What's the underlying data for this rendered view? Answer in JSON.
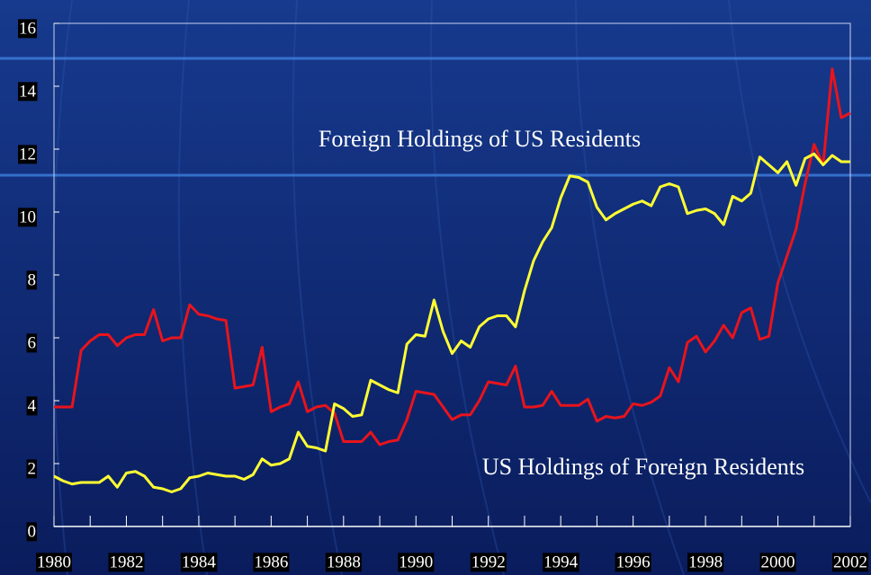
{
  "chart_data": {
    "type": "line",
    "annotations": [
      "Foreign Holdings of US Residents",
      "US Holdings of Foreign Residents"
    ],
    "x": [
      1980,
      1980.25,
      1980.5,
      1980.75,
      1981,
      1981.25,
      1981.5,
      1981.75,
      1982,
      1982.25,
      1982.5,
      1982.75,
      1983,
      1983.25,
      1983.5,
      1983.75,
      1984,
      1984.25,
      1984.5,
      1984.75,
      1985,
      1985.25,
      1985.5,
      1985.75,
      1986,
      1986.25,
      1986.5,
      1986.75,
      1987,
      1987.25,
      1987.5,
      1987.75,
      1988,
      1988.25,
      1988.5,
      1988.75,
      1989,
      1989.25,
      1989.5,
      1989.75,
      1990,
      1990.25,
      1990.5,
      1990.75,
      1991,
      1991.25,
      1991.5,
      1991.75,
      1992,
      1992.25,
      1992.5,
      1992.75,
      1993,
      1993.25,
      1993.5,
      1993.75,
      1994,
      1994.25,
      1994.5,
      1994.75,
      1995,
      1995.25,
      1995.5,
      1995.75,
      1996,
      1996.25,
      1996.5,
      1996.75,
      1997,
      1997.25,
      1997.5,
      1997.75,
      1998,
      1998.25,
      1998.5,
      1998.75,
      1999,
      1999.25,
      1999.5,
      1999.75,
      2000,
      2000.25,
      2000.5,
      2000.75,
      2001,
      2001.25,
      2001.5,
      2001.75,
      2002
    ],
    "series": [
      {
        "name": "US Holdings of Foreign Residents",
        "color": "#e8141c",
        "values": [
          3.8,
          3.8,
          3.8,
          5.6,
          5.9,
          6.1,
          6.1,
          5.75,
          6.0,
          6.1,
          6.1,
          6.9,
          5.9,
          6.0,
          6.0,
          7.05,
          6.75,
          6.7,
          6.6,
          6.55,
          4.4,
          4.45,
          4.5,
          5.7,
          3.65,
          3.8,
          3.9,
          4.6,
          3.65,
          3.8,
          3.85,
          3.6,
          2.7,
          2.7,
          2.7,
          3.0,
          2.6,
          2.7,
          2.75,
          3.4,
          4.3,
          4.25,
          4.2,
          3.8,
          3.4,
          3.55,
          3.55,
          4.0,
          4.6,
          4.55,
          4.5,
          5.1,
          3.8,
          3.8,
          3.85,
          4.3,
          3.85,
          3.85,
          3.85,
          4.05,
          3.35,
          3.5,
          3.45,
          3.5,
          3.9,
          3.85,
          3.95,
          4.15,
          5.05,
          4.6,
          5.85,
          6.05,
          5.55,
          5.9,
          6.4,
          6.0,
          6.8,
          6.95,
          5.95,
          6.05,
          7.75,
          8.6,
          9.45,
          10.9,
          12.15,
          11.5,
          14.55,
          13.0,
          13.15
        ]
      },
      {
        "name": "Foreign Holdings of US Residents",
        "color": "#ffff33",
        "values": [
          1.6,
          1.45,
          1.35,
          1.4,
          1.4,
          1.4,
          1.6,
          1.25,
          1.7,
          1.75,
          1.6,
          1.25,
          1.2,
          1.1,
          1.2,
          1.55,
          1.6,
          1.7,
          1.65,
          1.6,
          1.6,
          1.5,
          1.65,
          2.15,
          1.95,
          2.0,
          2.15,
          3.0,
          2.55,
          2.5,
          2.4,
          3.9,
          3.75,
          3.5,
          3.55,
          4.65,
          4.5,
          4.35,
          4.25,
          5.8,
          6.1,
          6.05,
          7.2,
          6.2,
          5.5,
          5.9,
          5.7,
          6.35,
          6.6,
          6.7,
          6.7,
          6.35,
          7.5,
          8.45,
          9.05,
          9.5,
          10.45,
          11.15,
          11.1,
          10.95,
          10.15,
          9.75,
          9.95,
          10.1,
          10.25,
          10.35,
          10.2,
          10.8,
          10.9,
          10.8,
          9.95,
          10.05,
          10.1,
          9.95,
          9.6,
          10.5,
          10.35,
          10.6,
          11.75,
          11.5,
          11.25,
          11.6,
          10.85,
          11.7,
          11.85,
          11.5,
          11.8,
          11.6,
          11.6
        ]
      }
    ],
    "xlim": [
      1980,
      2002
    ],
    "xticks": [
      1980,
      1982,
      1984,
      1986,
      1988,
      1990,
      1992,
      1994,
      1996,
      1998,
      2000,
      2002
    ],
    "xminorticks": [
      1981,
      1983,
      1985,
      1987,
      1989,
      1991,
      1993,
      1995,
      1997,
      1999,
      2001
    ],
    "ylim": [
      0,
      16
    ],
    "yticks": [
      0,
      2,
      4,
      6,
      8,
      10,
      12,
      14,
      16
    ],
    "grid": false
  }
}
